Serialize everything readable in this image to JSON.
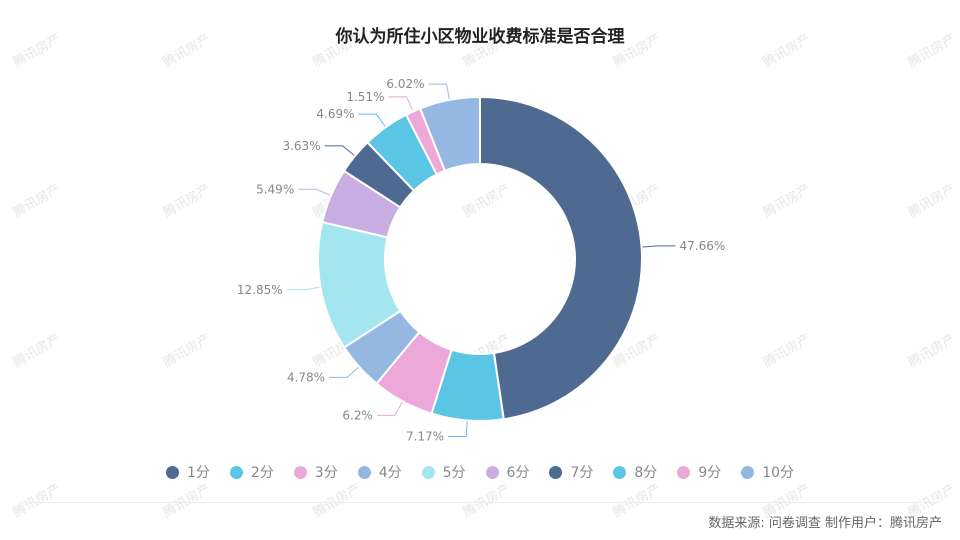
{
  "watermark": "腾讯房产",
  "chart_data": {
    "type": "pie",
    "variant": "donut",
    "title": "你认为所住小区物业收费标准是否合理",
    "categories": [
      "1分",
      "2分",
      "3分",
      "4分",
      "5分",
      "6分",
      "7分",
      "8分",
      "9分",
      "10分"
    ],
    "values": [
      47.66,
      7.17,
      6.2,
      4.78,
      12.85,
      5.49,
      3.63,
      4.69,
      1.51,
      6.02
    ],
    "labels": [
      "47.66%",
      "7.17%",
      "6.2%",
      "4.78%",
      "12.85%",
      "5.49%",
      "3.63%",
      "4.69%",
      "1.51%",
      "6.02%"
    ],
    "colors": [
      "#4f6a90",
      "#5bc5e6",
      "#eba8d8",
      "#94b8e2",
      "#a3e6f0",
      "#c8aee3",
      "#4f6a90",
      "#5bc5e6",
      "#eba8d8",
      "#94b8e2"
    ],
    "legend_position": "bottom"
  },
  "source_text": "数据来源: 问卷调查 制作用户：腾讯房产"
}
